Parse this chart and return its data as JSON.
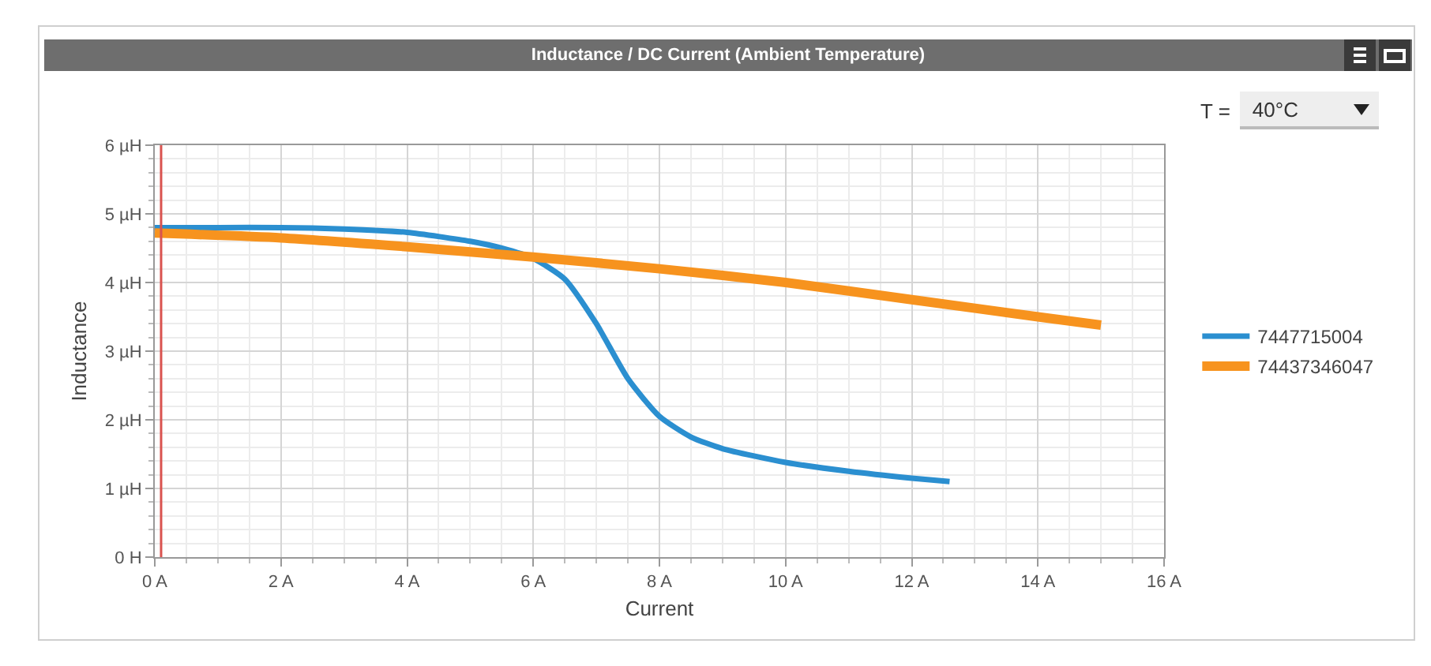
{
  "chart_data": {
    "type": "line",
    "title": "Inductance / DC Current (Ambient Temperature)",
    "xlabel": "Current",
    "ylabel": "Inductance",
    "annotations": [
      "T =",
      "40°C"
    ],
    "series": [
      {
        "name": "7447715004",
        "color": "#2b8fd0",
        "x": [
          0,
          1,
          2,
          3,
          4,
          5,
          5.5,
          6,
          6.5,
          7,
          7.5,
          8,
          8.5,
          9,
          10,
          11,
          12,
          12.6
        ],
        "values": [
          4.8,
          4.8,
          4.8,
          4.78,
          4.73,
          4.6,
          4.5,
          4.35,
          4.05,
          3.4,
          2.6,
          2.05,
          1.75,
          1.58,
          1.38,
          1.25,
          1.15,
          1.1
        ]
      },
      {
        "name": "74437346047",
        "color": "#f7931e",
        "x": [
          0,
          2,
          4,
          6,
          8,
          10,
          12,
          14,
          15
        ],
        "values": [
          4.72,
          4.65,
          4.52,
          4.37,
          4.2,
          4.0,
          3.75,
          3.5,
          3.38
        ]
      }
    ],
    "ref_lines": [
      {
        "axis": "x",
        "value": 0.1,
        "label": null,
        "color": "#d9534f"
      }
    ],
    "xlim": [
      0,
      16
    ],
    "ylim": [
      0,
      6
    ],
    "xticks": [
      {
        "value": 0,
        "label": "0 A"
      },
      {
        "value": 2,
        "label": "2 A"
      },
      {
        "value": 4,
        "label": "4 A"
      },
      {
        "value": 6,
        "label": "6 A"
      },
      {
        "value": 8,
        "label": "8 A"
      },
      {
        "value": 10,
        "label": "10 A"
      },
      {
        "value": 12,
        "label": "12 A"
      },
      {
        "value": 14,
        "label": "14 A"
      },
      {
        "value": 16,
        "label": "16 A"
      }
    ],
    "yticks": [
      {
        "value": 0,
        "label": "0 H"
      },
      {
        "value": 1,
        "label": "1 µH"
      },
      {
        "value": 2,
        "label": "2 µH"
      },
      {
        "value": 3,
        "label": "3 µH"
      },
      {
        "value": 4,
        "label": "4 µH"
      },
      {
        "value": 5,
        "label": "5 µH"
      },
      {
        "value": 6,
        "label": "6 µH"
      }
    ],
    "grid": true,
    "legend": "right",
    "marker": "none",
    "line_style": "solid"
  }
}
